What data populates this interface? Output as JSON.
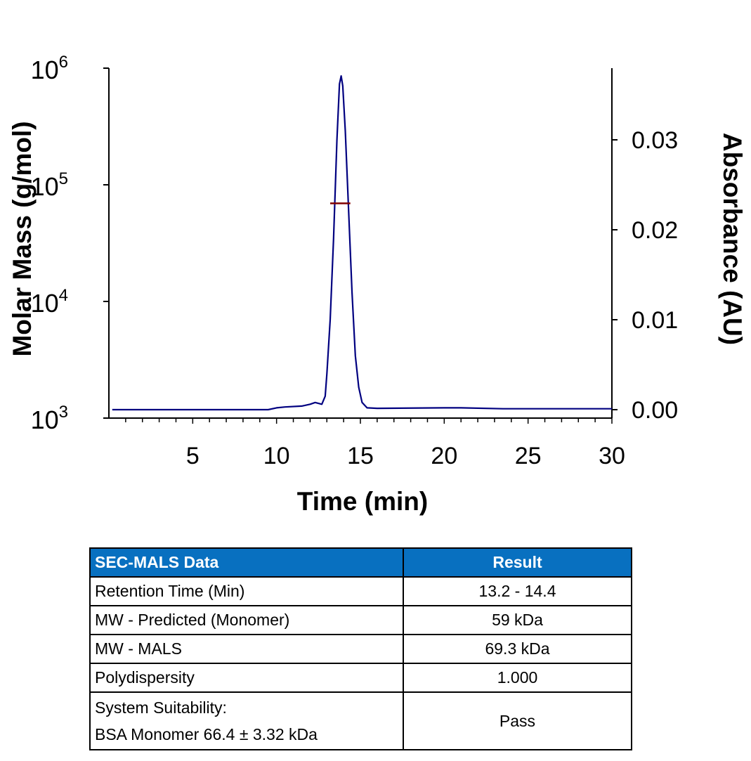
{
  "chart_data": {
    "type": "line",
    "xlabel": "Time (min)",
    "ylabel_left": "Molar Mass (g/mol)",
    "ylabel_right": "Absorbance (AU)",
    "xlim": [
      0,
      30
    ],
    "x_ticks": [
      "5",
      "10",
      "15",
      "20",
      "25",
      "30"
    ],
    "x_tick_values": [
      5,
      10,
      15,
      20,
      25,
      30
    ],
    "y_left_scale": "log",
    "y_left_lim": [
      1000,
      1000000
    ],
    "y_left_ticks": {
      "base": "10",
      "exponents": [
        "3",
        "4",
        "5",
        "6"
      ]
    },
    "y_right_lim": [
      0,
      0.038
    ],
    "y_right_ticks": [
      "0.00",
      "0.01",
      "0.02",
      "0.03"
    ],
    "y_right_tick_values": [
      0,
      0.01,
      0.02,
      0.03
    ],
    "grid": false,
    "series": [
      {
        "axis": "right",
        "color": "#000080",
        "x": [
          0.2,
          9.5,
          10.0,
          10.5,
          11.5,
          12.0,
          12.3,
          12.7,
          12.9,
          13.0,
          13.2,
          13.4,
          13.6,
          13.75,
          13.85,
          13.95,
          14.1,
          14.3,
          14.5,
          14.7,
          14.9,
          15.1,
          15.4,
          16,
          20,
          21,
          23.5,
          30
        ],
        "y": [
          0.0,
          0.0,
          0.0002,
          0.0003,
          0.0004,
          0.0006,
          0.0008,
          0.0006,
          0.0015,
          0.004,
          0.01,
          0.019,
          0.03,
          0.0362,
          0.0371,
          0.036,
          0.031,
          0.022,
          0.013,
          0.006,
          0.0025,
          0.0008,
          0.0002,
          0.00015,
          0.0002,
          0.0002,
          0.0001,
          0.0001
        ]
      },
      {
        "axis": "left",
        "color": "#800000",
        "x": [
          13.2,
          14.4
        ],
        "y": [
          69300,
          69300
        ]
      }
    ]
  },
  "table": {
    "headers": [
      "SEC-MALS Data",
      "Result"
    ],
    "header_color": "#0870c0",
    "rows": [
      {
        "label": "Retention Time (Min)",
        "value": "13.2 - 14.4"
      },
      {
        "label": "MW - Predicted (Monomer)",
        "value": "59 kDa"
      },
      {
        "label": "MW - MALS",
        "value": "69.3 kDa"
      },
      {
        "label": "Polydispersity",
        "value": "1.000"
      },
      {
        "label": "System Suitability:",
        "label2": "BSA Monomer 66.4 ± 3.32 kDa",
        "value": "Pass"
      }
    ]
  }
}
